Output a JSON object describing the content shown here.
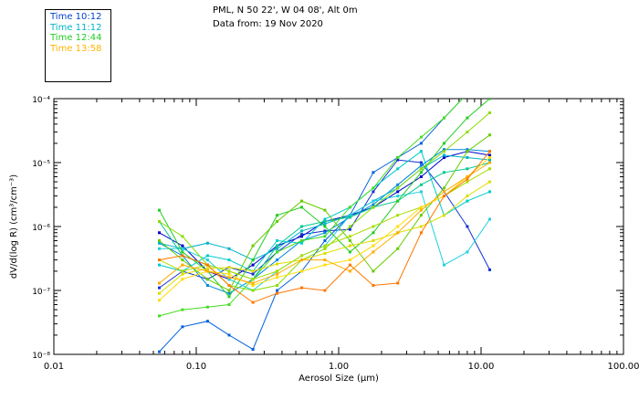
{
  "header": {
    "line1": "PML, N 50 22', W 04 08', Alt 0m",
    "line2": "Data from: 19 Nov 2020"
  },
  "legend": [
    {
      "label": "Time 10:12",
      "color": "#0044cc"
    },
    {
      "label": "Time 11:12",
      "color": "#00b4c8"
    },
    {
      "label": "Time 12:44",
      "color": "#22cc22"
    },
    {
      "label": "Time 13:58",
      "color": "#ffb400"
    }
  ],
  "chart_data": {
    "type": "line",
    "title": "",
    "xlabel": "Aerosol Size (μm)",
    "ylabel": "dV/d(log R) (cm³/cm⁻³)",
    "xscale": "log",
    "yscale": "log",
    "xlim": [
      0.01,
      100
    ],
    "ylim": [
      1e-08,
      0.0001
    ],
    "x_ticks": [
      {
        "value": 0.01,
        "label": "0.01"
      },
      {
        "value": 0.1,
        "label": "0.10"
      },
      {
        "value": 1,
        "label": "1.00"
      },
      {
        "value": 10,
        "label": "10.00"
      },
      {
        "value": 100,
        "label": "100.00"
      }
    ],
    "y_ticks": [
      {
        "value": 1e-08,
        "label": "10⁻⁸"
      },
      {
        "value": 1e-07,
        "label": "10⁻⁷"
      },
      {
        "value": 1e-06,
        "label": "10⁻⁶"
      },
      {
        "value": 1e-05,
        "label": "10⁻⁵"
      },
      {
        "value": 0.0001,
        "label": "10⁻⁴"
      }
    ],
    "x": [
      0.055,
      0.08,
      0.12,
      0.17,
      0.25,
      0.37,
      0.55,
      0.8,
      1.2,
      1.75,
      2.6,
      3.8,
      5.5,
      8.0,
      11.5
    ],
    "series": [
      {
        "name": "s01",
        "color": "#0000cc",
        "values": [
          8e-07,
          5e-07,
          2e-07,
          1.5e-07,
          2.5e-07,
          5e-07,
          7e-07,
          1.2e-06,
          1.5e-06,
          2e-06,
          3.5e-06,
          6e-06,
          1.2e-05,
          1.5e-05,
          1.3e-05
        ]
      },
      {
        "name": "s02",
        "color": "#0060dd",
        "values": [
          1.1e-08,
          2.7e-08,
          3.3e-08,
          2e-08,
          1.2e-08,
          1e-07,
          2e-07,
          6e-07,
          1.5e-06,
          7e-06,
          1.2e-05,
          2e-05,
          5e-05,
          0.00012,
          0.00013
        ]
      },
      {
        "name": "s03",
        "color": "#1530d0",
        "values": [
          1.1e-07,
          2e-07,
          1.5e-07,
          2.3e-07,
          1.8e-07,
          4e-07,
          7.5e-07,
          8.5e-07,
          9e-07,
          3.5e-06,
          1.1e-05,
          1e-05,
          3.5e-06,
          1e-06,
          2.1e-07
        ]
      },
      {
        "name": "s04",
        "color": "#0088dd",
        "values": [
          5.5e-07,
          3.5e-07,
          1.2e-07,
          9e-08,
          1.5e-07,
          3e-07,
          6e-07,
          8e-07,
          1.4e-06,
          2.2e-06,
          4.5e-06,
          9e-06,
          1.6e-05,
          1.6e-05,
          1.5e-05
        ]
      },
      {
        "name": "s05",
        "color": "#00b4c8",
        "values": [
          5.5e-07,
          4.5e-07,
          5.5e-07,
          4.5e-07,
          3e-07,
          4.5e-07,
          8.5e-07,
          1.1e-06,
          1.5e-06,
          2.5e-06,
          4e-06,
          8e-06,
          1.3e-05,
          1.2e-05,
          1.1e-05
        ]
      },
      {
        "name": "s06",
        "color": "#00cccc",
        "values": [
          2.5e-07,
          2e-07,
          3.5e-07,
          3e-07,
          2e-07,
          6e-07,
          5.5e-07,
          1.3e-06,
          2e-06,
          4e-06,
          8e-06,
          1.5e-05,
          1.5e-06,
          2.5e-06,
          3.5e-06
        ]
      },
      {
        "name": "s07",
        "color": "#20d0e0",
        "values": [
          4.5e-07,
          4.5e-07,
          3e-07,
          1.5e-07,
          1e-07,
          2e-07,
          3.5e-07,
          5e-07,
          1.5e-06,
          2.5e-06,
          3e-06,
          3.5e-06,
          2.5e-07,
          4e-07,
          1.3e-06
        ]
      },
      {
        "name": "s08",
        "color": "#00c890",
        "values": [
          1.2e-06,
          3.5e-07,
          2.5e-07,
          2e-07,
          1.5e-07,
          5e-07,
          1e-06,
          1.2e-06,
          1.4e-06,
          2e-06,
          2.5e-06,
          4.5e-06,
          7e-06,
          8e-06,
          1e-05
        ]
      },
      {
        "name": "s09",
        "color": "#22cc22",
        "values": [
          1.8e-06,
          4e-07,
          2e-07,
          8e-08,
          3e-07,
          1.5e-06,
          2e-06,
          1e-06,
          4e-07,
          8e-07,
          2.5e-06,
          7e-06,
          2e-05,
          5e-05,
          0.0001
        ]
      },
      {
        "name": "s10",
        "color": "#44dd22",
        "values": [
          4e-08,
          5e-08,
          5.5e-08,
          6e-08,
          1.5e-07,
          4e-07,
          6e-07,
          7e-07,
          2e-06,
          4e-06,
          1.2e-05,
          2.5e-05,
          5e-05,
          0.00012,
          0.00015
        ]
      },
      {
        "name": "s11",
        "color": "#66cc00",
        "values": [
          6e-07,
          3e-07,
          1.5e-07,
          1e-07,
          5e-07,
          1.2e-06,
          2.5e-06,
          1.8e-06,
          6e-07,
          2e-07,
          4.5e-07,
          1.5e-06,
          4e-06,
          1.5e-05,
          2.7e-05
        ]
      },
      {
        "name": "s12",
        "color": "#88dd00",
        "values": [
          1.2e-06,
          7e-07,
          2.5e-07,
          1.2e-07,
          1e-07,
          1.2e-07,
          3e-07,
          4.5e-07,
          1e-06,
          2e-06,
          4e-06,
          8e-06,
          1.5e-05,
          3e-05,
          6e-05
        ]
      },
      {
        "name": "s13",
        "color": "#aadd00",
        "values": [
          3e-07,
          2e-07,
          2.5e-07,
          2e-07,
          1.5e-07,
          2e-07,
          3.5e-07,
          5e-07,
          7e-07,
          1e-06,
          1.5e-06,
          2e-06,
          3e-06,
          5e-06,
          8e-06
        ]
      },
      {
        "name": "s14",
        "color": "#dddd00",
        "values": [
          9e-08,
          1.8e-07,
          2.2e-07,
          2.3e-07,
          2e-07,
          2.6e-07,
          3e-07,
          3.8e-07,
          5e-07,
          6e-07,
          8e-07,
          1e-06,
          1.5e-06,
          3e-06,
          5e-06
        ]
      },
      {
        "name": "s15",
        "color": "#ffdd00",
        "values": [
          7e-08,
          1.5e-07,
          2e-07,
          1.8e-07,
          1.2e-07,
          1.6e-07,
          2e-07,
          2.5e-07,
          3e-07,
          5e-07,
          1e-06,
          2e-06,
          3e-06,
          6e-06,
          1.2e-05
        ]
      },
      {
        "name": "s16",
        "color": "#ffaa00",
        "values": [
          1.3e-07,
          2.5e-07,
          2e-07,
          1.6e-07,
          1.3e-07,
          1.8e-07,
          3e-07,
          3e-07,
          2e-07,
          4e-07,
          8e-07,
          1.8e-06,
          3.5e-06,
          6e-06,
          1e-05
        ]
      },
      {
        "name": "s17",
        "color": "#ff7700",
        "values": [
          3e-07,
          3.5e-07,
          2.5e-07,
          1.2e-07,
          6.5e-08,
          9e-08,
          1.1e-07,
          1e-07,
          2.5e-07,
          1.2e-07,
          1.3e-07,
          8e-07,
          3e-06,
          5.5e-06,
          1.5e-05
        ]
      }
    ]
  }
}
